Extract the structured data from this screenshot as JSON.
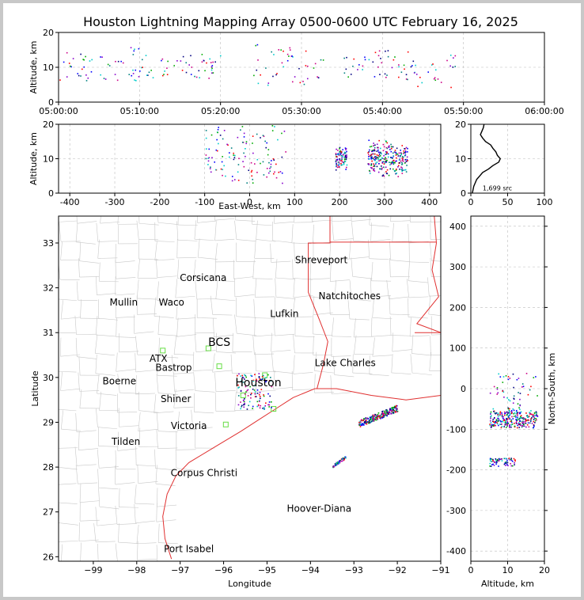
{
  "chart_data": [
    {
      "id": "time_altitude",
      "type": "scatter",
      "title": "Houston Lightning Mapping Array 0500-0600 UTC February 16, 2025",
      "xlabel": "",
      "ylabel": "Altitude, km",
      "xticks": [
        "05:00:00",
        "05:10:00",
        "05:20:00",
        "05:30:00",
        "05:40:00",
        "05:50:00",
        "06:00:00"
      ],
      "xlim_minutes": [
        0,
        60
      ],
      "ylim": [
        0,
        20
      ],
      "yticks": [
        0,
        10,
        20
      ],
      "clusters": [
        {
          "x_min": [
            0,
            10
          ],
          "alt_km": [
            6,
            16
          ]
        },
        {
          "x_min": [
            10,
            20
          ],
          "alt_km": [
            7,
            14
          ]
        },
        {
          "x_min": [
            24,
            33
          ],
          "alt_km": [
            5,
            17
          ]
        },
        {
          "x_min": [
            35,
            41
          ],
          "alt_km": [
            7,
            15
          ]
        },
        {
          "x_min": [
            41,
            49
          ],
          "alt_km": [
            4,
            15
          ]
        }
      ]
    },
    {
      "id": "ew_altitude",
      "type": "scatter",
      "xlabel": "East-West, km",
      "ylabel": "Altitude, km",
      "xlim": [
        -425,
        425
      ],
      "xticks": [
        -400,
        -300,
        -200,
        -100,
        0,
        100,
        200,
        300,
        400
      ],
      "ylim": [
        0,
        20
      ],
      "yticks": [
        0,
        10,
        20
      ],
      "clusters": [
        {
          "x_km": [
            -100,
            80
          ],
          "alt_km": [
            3,
            20
          ]
        },
        {
          "x_km": [
            190,
            215
          ],
          "alt_km": [
            7,
            14
          ]
        },
        {
          "x_km": [
            262,
            350
          ],
          "alt_km": [
            6,
            18
          ]
        }
      ]
    },
    {
      "id": "altitude_histogram",
      "type": "line",
      "xlim": [
        0,
        100
      ],
      "xticks": [
        0,
        50,
        100
      ],
      "ylim": [
        0,
        20
      ],
      "yticks": [
        0,
        10,
        20
      ],
      "annotation": "1,699 src",
      "profile": [
        {
          "alt": 0,
          "count": 2
        },
        {
          "alt": 1,
          "count": 3
        },
        {
          "alt": 2,
          "count": 4
        },
        {
          "alt": 3,
          "count": 6
        },
        {
          "alt": 4,
          "count": 8
        },
        {
          "alt": 5,
          "count": 12
        },
        {
          "alt": 6,
          "count": 16
        },
        {
          "alt": 7,
          "count": 24
        },
        {
          "alt": 8,
          "count": 30
        },
        {
          "alt": 9,
          "count": 38
        },
        {
          "alt": 10,
          "count": 40
        },
        {
          "alt": 11,
          "count": 36
        },
        {
          "alt": 12,
          "count": 34
        },
        {
          "alt": 13,
          "count": 30
        },
        {
          "alt": 14,
          "count": 27
        },
        {
          "alt": 15,
          "count": 20
        },
        {
          "alt": 16,
          "count": 16
        },
        {
          "alt": 17,
          "count": 13
        },
        {
          "alt": 18,
          "count": 15
        },
        {
          "alt": 19,
          "count": 17
        },
        {
          "alt": 20,
          "count": 18
        }
      ]
    },
    {
      "id": "plan_view",
      "type": "scatter",
      "xlabel": "Longitude",
      "ylabel": "Latitude",
      "xlim": [
        -99.8,
        -91
      ],
      "ylim": [
        25.9,
        33.6
      ],
      "xticks": [
        -99,
        -98,
        -97,
        -96,
        -95,
        -94,
        -93,
        -92,
        -91
      ],
      "yticks": [
        26,
        27,
        28,
        29,
        30,
        31,
        32,
        33
      ],
      "city_labels": [
        {
          "name": "Shreveport",
          "lon": -93.75,
          "lat": 32.55,
          "color": "#000000"
        },
        {
          "name": "Corsicana",
          "lon": -96.47,
          "lat": 32.15,
          "color": "#000000"
        },
        {
          "name": "Natchitoches",
          "lon": -93.1,
          "lat": 31.75,
          "color": "#000000"
        },
        {
          "name": "Mullin",
          "lon": -98.3,
          "lat": 31.6,
          "color": "#f08040"
        },
        {
          "name": "Waco",
          "lon": -97.2,
          "lat": 31.6,
          "color": "#000000"
        },
        {
          "name": "Lufkin",
          "lon": -94.6,
          "lat": 31.35,
          "color": "#000000"
        },
        {
          "name": "BCS",
          "lon": -96.1,
          "lat": 30.7,
          "color": "#8b1a1a"
        },
        {
          "name": "ATX",
          "lon": -97.5,
          "lat": 30.35,
          "color": "#f08040"
        },
        {
          "name": "Bastrop",
          "lon": -97.15,
          "lat": 30.15,
          "color": "#000000"
        },
        {
          "name": "Lake Charles",
          "lon": -93.2,
          "lat": 30.25,
          "color": "#000000"
        },
        {
          "name": "Boerne",
          "lon": -98.4,
          "lat": 29.85,
          "color": "#000000"
        },
        {
          "name": "Houston",
          "lon": -95.2,
          "lat": 29.8,
          "color": "#f5a623"
        },
        {
          "name": "Shiner",
          "lon": -97.1,
          "lat": 29.45,
          "color": "#000000"
        },
        {
          "name": "Victoria",
          "lon": -96.8,
          "lat": 28.85,
          "color": "#000000"
        },
        {
          "name": "Tilden",
          "lon": -98.25,
          "lat": 28.5,
          "color": "#000000"
        },
        {
          "name": "Corpus Christi",
          "lon": -96.45,
          "lat": 27.8,
          "color": "#000000"
        },
        {
          "name": "Hoover-Diana",
          "lon": -93.8,
          "lat": 27.0,
          "color": "#1a1ae6"
        },
        {
          "name": "Port Isabel",
          "lon": -96.8,
          "lat": 26.1,
          "color": "#000000"
        }
      ],
      "stations": [
        {
          "lon": -97.4,
          "lat": 30.6
        },
        {
          "lon": -96.35,
          "lat": 30.65
        },
        {
          "lon": -95.05,
          "lat": 30.05
        },
        {
          "lon": -95.55,
          "lat": 29.6
        },
        {
          "lon": -94.85,
          "lat": 29.3
        },
        {
          "lon": -95.95,
          "lat": 28.95
        },
        {
          "lon": -96.1,
          "lat": 30.25
        }
      ],
      "clusters": [
        {
          "lon": [
            -95.7,
            -94.9
          ],
          "lat": [
            29.3,
            30.1
          ]
        },
        {
          "lon": [
            -92.9,
            -92.0
          ],
          "lat": [
            28.9,
            29.4
          ]
        },
        {
          "lon": [
            -93.5,
            -93.2
          ],
          "lat": [
            28.0,
            28.25
          ]
        }
      ]
    },
    {
      "id": "alt_northsouth",
      "type": "scatter",
      "xlabel": "Altitude, km",
      "ylabel": "North-South, km",
      "xlim": [
        0,
        20
      ],
      "xticks": [
        0,
        10,
        20
      ],
      "ylim": [
        -425,
        425
      ],
      "yticks": [
        -400,
        -300,
        -200,
        -100,
        0,
        100,
        200,
        300,
        400
      ],
      "clusters": [
        {
          "alt_km": [
            5,
            18
          ],
          "ns_km": [
            -90,
            40
          ]
        },
        {
          "alt_km": [
            5,
            12
          ],
          "ns_km": [
            -190,
            -170
          ]
        }
      ]
    }
  ]
}
